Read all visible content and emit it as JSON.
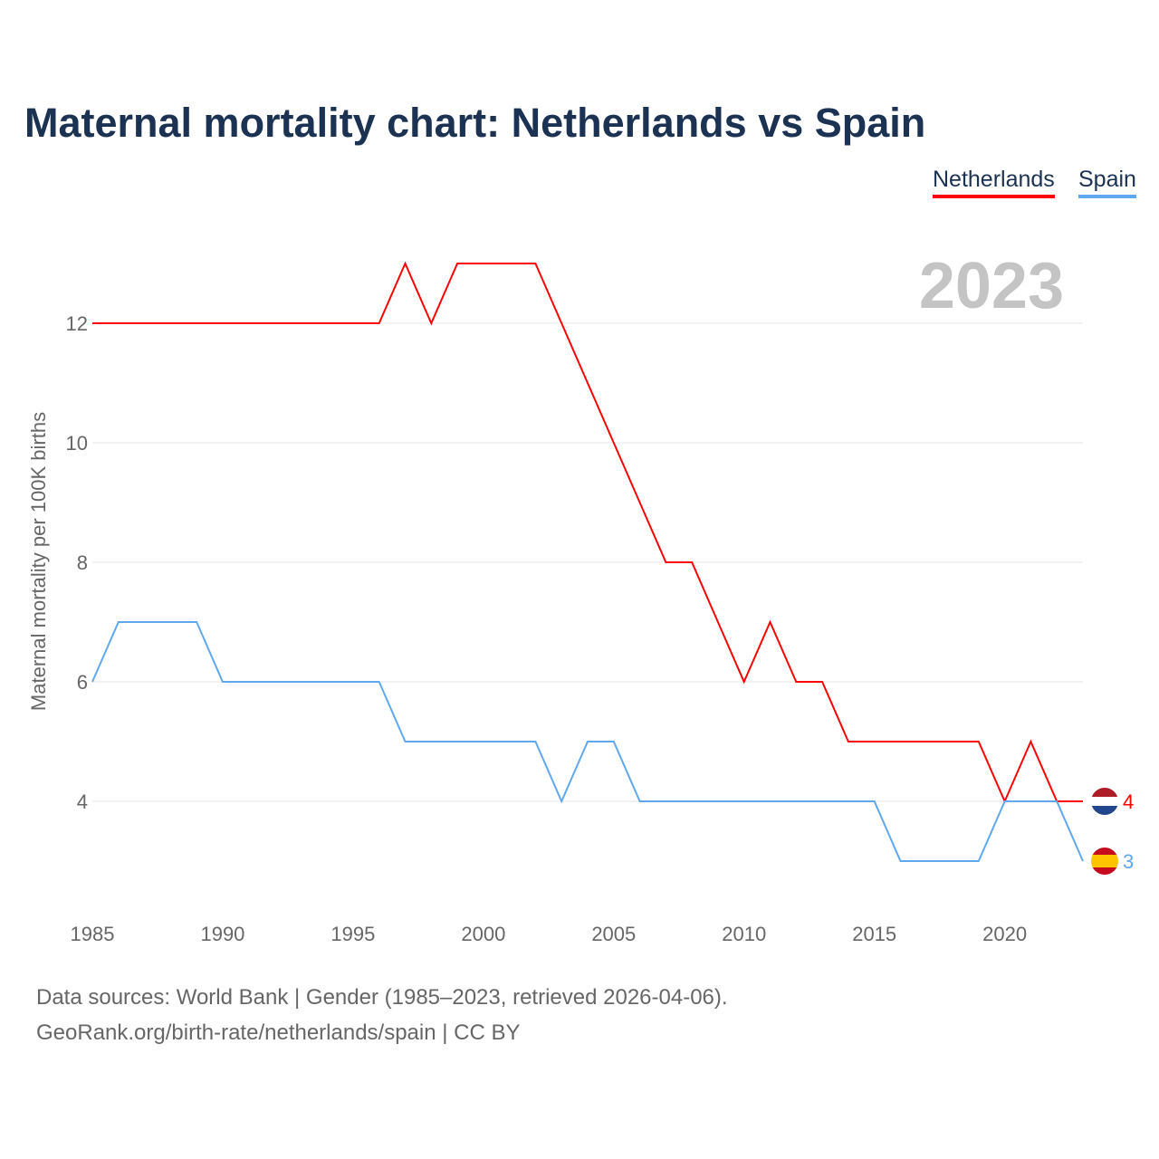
{
  "chart_data": {
    "type": "line",
    "title": "Maternal mortality chart: Netherlands vs Spain",
    "xlabel": "",
    "ylabel": "Maternal mortality per 100K births",
    "year_label": "2023",
    "x": [
      1985,
      1986,
      1987,
      1988,
      1989,
      1990,
      1991,
      1992,
      1993,
      1994,
      1995,
      1996,
      1997,
      1998,
      1999,
      2000,
      2001,
      2002,
      2003,
      2004,
      2005,
      2006,
      2007,
      2008,
      2009,
      2010,
      2011,
      2012,
      2013,
      2014,
      2015,
      2016,
      2017,
      2018,
      2019,
      2020,
      2021,
      2022,
      2023
    ],
    "series": [
      {
        "name": "Netherlands",
        "color": "#ff0000",
        "end_label": "4",
        "values": [
          12,
          12,
          12,
          12,
          12,
          12,
          12,
          12,
          12,
          12,
          12,
          12,
          13,
          12,
          13,
          13,
          13,
          13,
          12,
          11,
          10,
          9,
          8,
          8,
          7,
          6,
          7,
          6,
          6,
          5,
          5,
          5,
          5,
          5,
          5,
          4,
          5,
          4,
          4
        ]
      },
      {
        "name": "Spain",
        "color": "#5fa8ee",
        "end_label": "3",
        "values": [
          6,
          7,
          7,
          7,
          7,
          6,
          6,
          6,
          6,
          6,
          6,
          6,
          5,
          5,
          5,
          5,
          5,
          5,
          4,
          5,
          5,
          4,
          4,
          4,
          4,
          4,
          4,
          4,
          4,
          4,
          4,
          3,
          3,
          3,
          3,
          4,
          4,
          4,
          3
        ]
      }
    ],
    "xticks": [
      "1985",
      "1990",
      "1995",
      "2000",
      "2005",
      "2010",
      "2015",
      "2020"
    ],
    "yticks": [
      "4",
      "6",
      "8",
      "10",
      "12"
    ],
    "xlim": [
      1985,
      2023
    ],
    "ylim": [
      2.5,
      13.5
    ],
    "grid": true,
    "legend": "top-right"
  },
  "footer": {
    "sources": "Data sources: World Bank | Gender (1985–2023, retrieved 2026-04-06).",
    "link": "GeoRank.org/birth-rate/netherlands/spain | CC BY"
  }
}
